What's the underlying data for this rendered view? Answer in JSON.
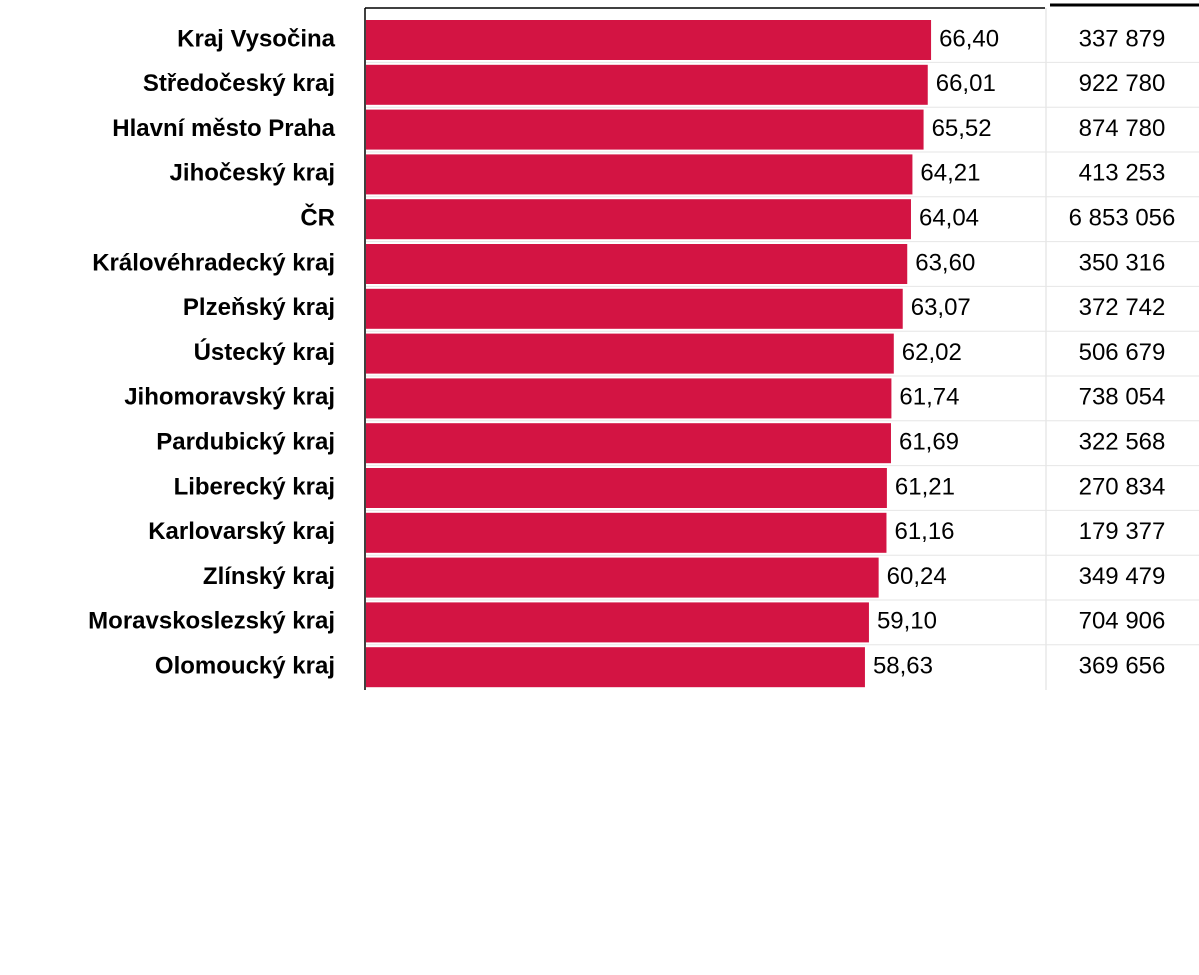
{
  "chart_data": {
    "type": "bar",
    "orientation": "horizontal",
    "categories": [
      "Kraj Vysočina",
      "Středočeský kraj",
      "Hlavní město Praha",
      "Jihočeský kraj",
      "ČR",
      "Královéhradecký kraj",
      "Plzeňský kraj",
      "Ústecký kraj",
      "Jihomoravský kraj",
      "Pardubický kraj",
      "Liberecký kraj",
      "Karlovarský kraj",
      "Zlínský kraj",
      "Moravskoslezský kraj",
      "Olomoucký kraj"
    ],
    "values": [
      66.4,
      66.01,
      65.52,
      64.21,
      64.04,
      63.6,
      63.07,
      62.02,
      61.74,
      61.69,
      61.21,
      61.16,
      60.24,
      59.1,
      58.63
    ],
    "value_labels": [
      "66,40",
      "66,01",
      "65,52",
      "64,21",
      "64,04",
      "63,60",
      "63,07",
      "62,02",
      "61,74",
      "61,69",
      "61,21",
      "61,16",
      "60,24",
      "59,10",
      "58,63"
    ],
    "color": "#d31443",
    "xlim": [
      0,
      70
    ],
    "counts": {
      "values": [
        337879,
        922780,
        874780,
        413253,
        6853056,
        350316,
        372742,
        506679,
        738054,
        322568,
        270834,
        179377,
        349479,
        704906,
        369656
      ],
      "value_labels": [
        "337 879",
        "922 780",
        "874 780",
        "413 253",
        "6 853 056",
        "350 316",
        "372 742",
        "506 679",
        "738 054",
        "322 568",
        "270 834",
        "179 377",
        "349 479",
        "704 906",
        "369 656"
      ]
    }
  }
}
